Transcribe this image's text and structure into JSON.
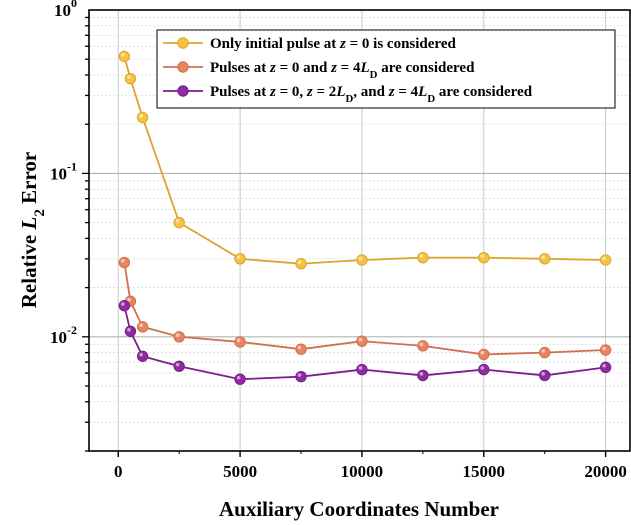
{
  "chart_data": {
    "type": "line",
    "title": "",
    "x_scale": "linear",
    "y_scale": "log",
    "xlim": [
      -1200,
      21000
    ],
    "ylim": [
      0.002,
      1
    ],
    "grid": true,
    "legend_position": "top-right",
    "x_ticks": [
      {
        "value": 0,
        "label": "0"
      },
      {
        "value": 5000,
        "label": "5000"
      },
      {
        "value": 10000,
        "label": "10000"
      },
      {
        "value": 15000,
        "label": "15000"
      },
      {
        "value": 20000,
        "label": "20000"
      }
    ],
    "y_ticks": [
      {
        "value": 0.01,
        "base": "10",
        "exp": "-2"
      },
      {
        "value": 0.1,
        "base": "10",
        "exp": "-1"
      },
      {
        "value": 1,
        "base": "10",
        "exp": "0"
      }
    ],
    "x": [
      250,
      500,
      1000,
      2500,
      5000,
      7500,
      10000,
      12500,
      15000,
      17500,
      20000
    ],
    "series": [
      {
        "legend": [
          {
            "t": "Only initial pulse at ",
            "it": false
          },
          {
            "t": "z",
            "it": true
          },
          {
            "t": " = 0 is considered",
            "it": false
          }
        ],
        "color": "#f5c242",
        "line_color": "#d9a62a",
        "values": [
          0.52,
          0.38,
          0.22,
          0.05,
          0.03,
          0.028,
          0.0295,
          0.0305,
          0.0305,
          0.03,
          0.0295
        ]
      },
      {
        "legend": [
          {
            "t": "Pulses at ",
            "it": false
          },
          {
            "t": "z",
            "it": true
          },
          {
            "t": " = 0 and ",
            "it": false
          },
          {
            "t": "z",
            "it": true
          },
          {
            "t": " = 4",
            "it": false
          },
          {
            "t": "L",
            "it": true
          },
          {
            "t": "D",
            "sub": true
          },
          {
            "t": " are considered",
            "it": false
          }
        ],
        "color": "#e88560",
        "line_color": "#d0704c",
        "values": [
          0.0285,
          0.0165,
          0.0115,
          0.01,
          0.0093,
          0.0084,
          0.0094,
          0.0088,
          0.0078,
          0.008,
          0.0083
        ]
      },
      {
        "legend": [
          {
            "t": "Pulses at ",
            "it": false
          },
          {
            "t": "z",
            "it": true
          },
          {
            "t": " = 0, ",
            "it": false
          },
          {
            "t": "z",
            "it": true
          },
          {
            "t": " = 2",
            "it": false
          },
          {
            "t": "L",
            "it": true
          },
          {
            "t": "D",
            "sub": true
          },
          {
            "t": ", and ",
            "it": false
          },
          {
            "t": "z",
            "it": true
          },
          {
            "t": " = 4",
            "it": false
          },
          {
            "t": "L",
            "it": true
          },
          {
            "t": "D",
            "sub": true
          },
          {
            "t": " are considered",
            "it": false
          }
        ],
        "color": "#8e2ba0",
        "line_color": "#7a1f8c",
        "values": [
          0.0155,
          0.0108,
          0.0076,
          0.0066,
          0.0055,
          0.0057,
          0.0063,
          0.0058,
          0.0063,
          0.0058,
          0.0065
        ]
      }
    ],
    "xlabel": "Auxiliary Coordinates Number",
    "ylabel_parts": [
      {
        "t": "Relative ",
        "it": false
      },
      {
        "t": "L",
        "it": true
      },
      {
        "t": "2",
        "sub": true
      },
      {
        "t": " Error",
        "it": false
      }
    ]
  }
}
